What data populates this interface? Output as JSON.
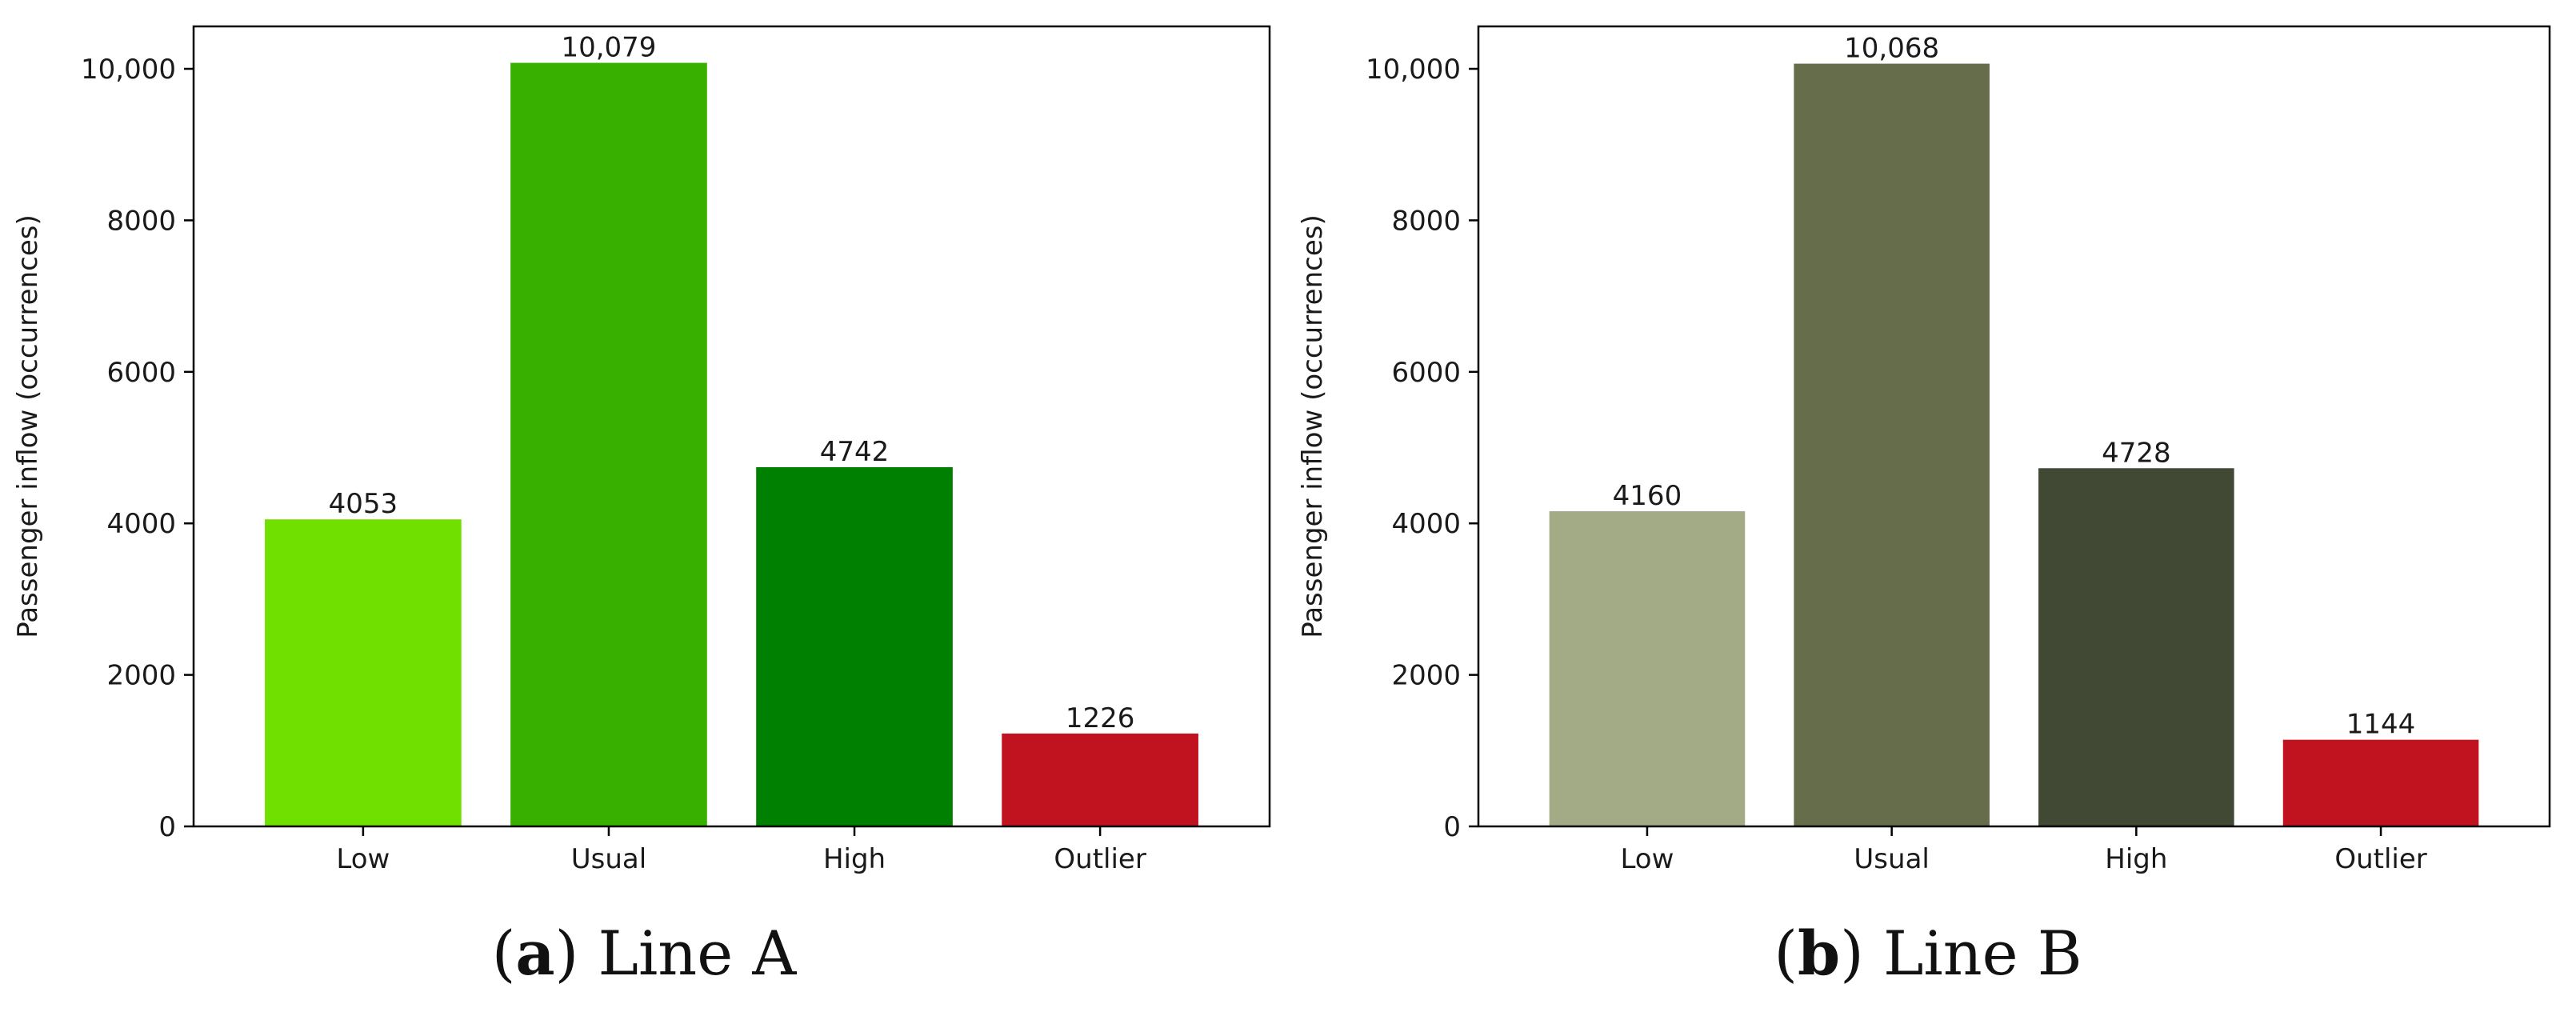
{
  "chart_data": [
    {
      "type": "bar",
      "panel": "(a)",
      "caption_tag": "a",
      "caption_text": "Line A",
      "categories": [
        "Low",
        "Usual",
        "High",
        "Outlier"
      ],
      "values": [
        4053,
        10079,
        4742,
        1226
      ],
      "value_labels": [
        "4053",
        "10,079",
        "4742",
        "1226"
      ],
      "colors": [
        "#70e000",
        "#38b000",
        "#008000",
        "#c1121f"
      ],
      "ylabel": "Passenger inflow (occurrences)",
      "ylim": [
        0,
        10560
      ],
      "yticks": [
        0,
        2000,
        4000,
        6000,
        8000,
        10000
      ],
      "ytick_labels": [
        "0",
        "2000",
        "4000",
        "6000",
        "8000",
        "10,000"
      ]
    },
    {
      "type": "bar",
      "panel": "(b)",
      "caption_tag": "b",
      "caption_text": "Line B",
      "categories": [
        "Low",
        "Usual",
        "High",
        "Outlier"
      ],
      "values": [
        4160,
        10068,
        4728,
        1144
      ],
      "value_labels": [
        "4160",
        "10,068",
        "4728",
        "1144"
      ],
      "colors": [
        "#a3ab86",
        "#656d4a",
        "#414833",
        "#c1121f"
      ],
      "ylabel": "Passenger inflow (occurrences)",
      "ylim": [
        0,
        10560
      ],
      "yticks": [
        0,
        2000,
        4000,
        6000,
        8000,
        10000
      ],
      "ytick_labels": [
        "0",
        "2000",
        "4000",
        "6000",
        "8000",
        "10,000"
      ]
    }
  ]
}
